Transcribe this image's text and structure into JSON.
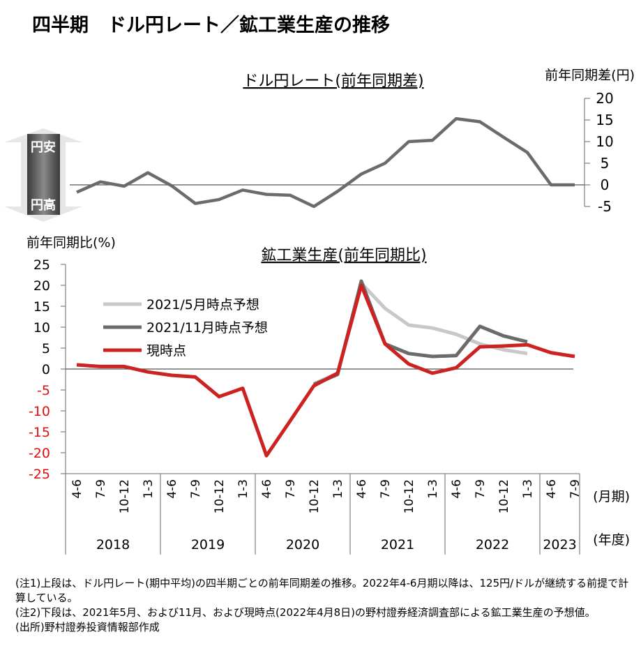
{
  "title": "四半期　ドル円レート／鉱工業生産の推移",
  "chart_data": [
    {
      "type": "line",
      "title": "ドル円レート(前年同期差)",
      "ylabel": "前年同期差(円)",
      "ylim": [
        -5,
        20
      ],
      "yticks": [
        20,
        15,
        10,
        5,
        0,
        -5
      ],
      "x": [
        "2018 4-6",
        "2018 7-9",
        "2018 10-12",
        "2018 1-3",
        "2019 4-6",
        "2019 7-9",
        "2019 10-12",
        "2019 1-3",
        "2020 4-6",
        "2020 7-9",
        "2020 10-12",
        "2020 1-3",
        "2021 4-6",
        "2021 7-9",
        "2021 10-12",
        "2021 1-3",
        "2022 4-6",
        "2022 7-9",
        "2022 10-12",
        "2022 1-3",
        "2023 4-6",
        "2023 7-9"
      ],
      "series": [
        {
          "color": "#6b6b6b",
          "values": [
            -1.7,
            0.7,
            -0.3,
            2.8,
            -0.2,
            -4.3,
            -3.4,
            -1.2,
            -2.2,
            -2.4,
            -5.0,
            -1.5,
            2.5,
            5.0,
            10.0,
            10.3,
            15.3,
            14.6,
            11.0,
            7.5,
            0.0,
            0.0
          ]
        }
      ],
      "arrow": {
        "up_label": "円安",
        "down_label": "円高"
      }
    },
    {
      "type": "line",
      "title": "鉱工業生産(前年同期比)",
      "ylabel": "前年同期比(%)",
      "ylim": [
        -25,
        25
      ],
      "yticks": [
        25,
        20,
        15,
        10,
        5,
        0,
        -5,
        -10,
        -15,
        -20,
        -25
      ],
      "categories": [
        "4-6",
        "7-9",
        "10-12",
        "1-3",
        "4-6",
        "7-9",
        "10-12",
        "1-3",
        "4-6",
        "7-9",
        "10-12",
        "1-3",
        "4-6",
        "7-9",
        "10-12",
        "1-3",
        "4-6",
        "7-9",
        "10-12",
        "1-3",
        "4-6",
        "7-9"
      ],
      "category_unit": "(月期)",
      "years": [
        {
          "label": "2018",
          "span": 4
        },
        {
          "label": "2019",
          "span": 4
        },
        {
          "label": "2020",
          "span": 4
        },
        {
          "label": "2021",
          "span": 4
        },
        {
          "label": "2022",
          "span": 4
        },
        {
          "label": "2023",
          "span": 2
        }
      ],
      "year_unit": "(年度)",
      "series": [
        {
          "name": "2021/5月時点予想",
          "color": "#c8c8c8",
          "values": [
            null,
            null,
            null,
            null,
            null,
            null,
            null,
            null,
            null,
            null,
            -3.5,
            -1.0,
            20.5,
            14.5,
            10.5,
            9.8,
            8.3,
            6.0,
            4.6,
            3.7,
            null,
            null
          ]
        },
        {
          "name": "2021/11月時点予想",
          "color": "#6b6b6b",
          "values": [
            null,
            null,
            null,
            null,
            null,
            null,
            null,
            -4.4,
            null,
            null,
            -3.7,
            -1.3,
            21.0,
            6.0,
            3.7,
            3.0,
            3.2,
            10.2,
            7.9,
            6.5,
            null,
            null
          ]
        },
        {
          "name": "現時点",
          "color": "#cc2222",
          "values": [
            1.0,
            0.6,
            0.6,
            -0.7,
            -1.5,
            -1.9,
            -6.6,
            -4.6,
            -20.7,
            -12.4,
            -4.0,
            -1.0,
            20.0,
            6.0,
            1.2,
            -1.0,
            0.3,
            5.3,
            5.5,
            5.8,
            3.9,
            3.0
          ]
        }
      ]
    }
  ],
  "notes": [
    "(注1)上段は、ドル円レート(期中平均)の四半期ごとの前年同期差の推移。2022年4-6月期以降は、125円/ドルが継続する前提で計算している。",
    "(注2)下段は、2021年5月、および11月、および現時点(2022年4月8日)の野村證券経済調査部による鉱工業生産の予想値。",
    "(出所)野村證券投資情報部作成"
  ]
}
